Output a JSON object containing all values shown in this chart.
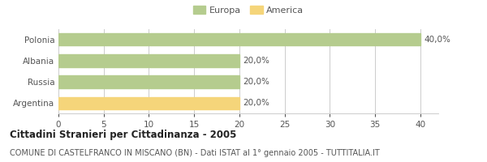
{
  "categories": [
    "Polonia",
    "Albania",
    "Russia",
    "Argentina"
  ],
  "values": [
    40.0,
    20.0,
    20.0,
    20.0
  ],
  "bar_colors": [
    "#b5cc8e",
    "#b5cc8e",
    "#b5cc8e",
    "#f5d57a"
  ],
  "labels": [
    "40,0%",
    "20,0%",
    "20,0%",
    "20,0%"
  ],
  "legend": [
    {
      "label": "Europa",
      "color": "#b5cc8e"
    },
    {
      "label": "America",
      "color": "#f5d57a"
    }
  ],
  "xlim": [
    0,
    42
  ],
  "xticks": [
    0,
    5,
    10,
    15,
    20,
    25,
    30,
    35,
    40
  ],
  "title": "Cittadini Stranieri per Cittadinanza - 2005",
  "subtitle": "COMUNE DI CASTELFRANCO IN MISCANO (BN) - Dati ISTAT al 1° gennaio 2005 - TUTTITALIA.IT",
  "title_fontsize": 8.5,
  "subtitle_fontsize": 7.0,
  "label_fontsize": 7.5,
  "tick_fontsize": 7.5,
  "legend_fontsize": 8.0,
  "background_color": "#ffffff",
  "grid_color": "#cccccc",
  "text_color": "#555555",
  "title_color": "#222222"
}
